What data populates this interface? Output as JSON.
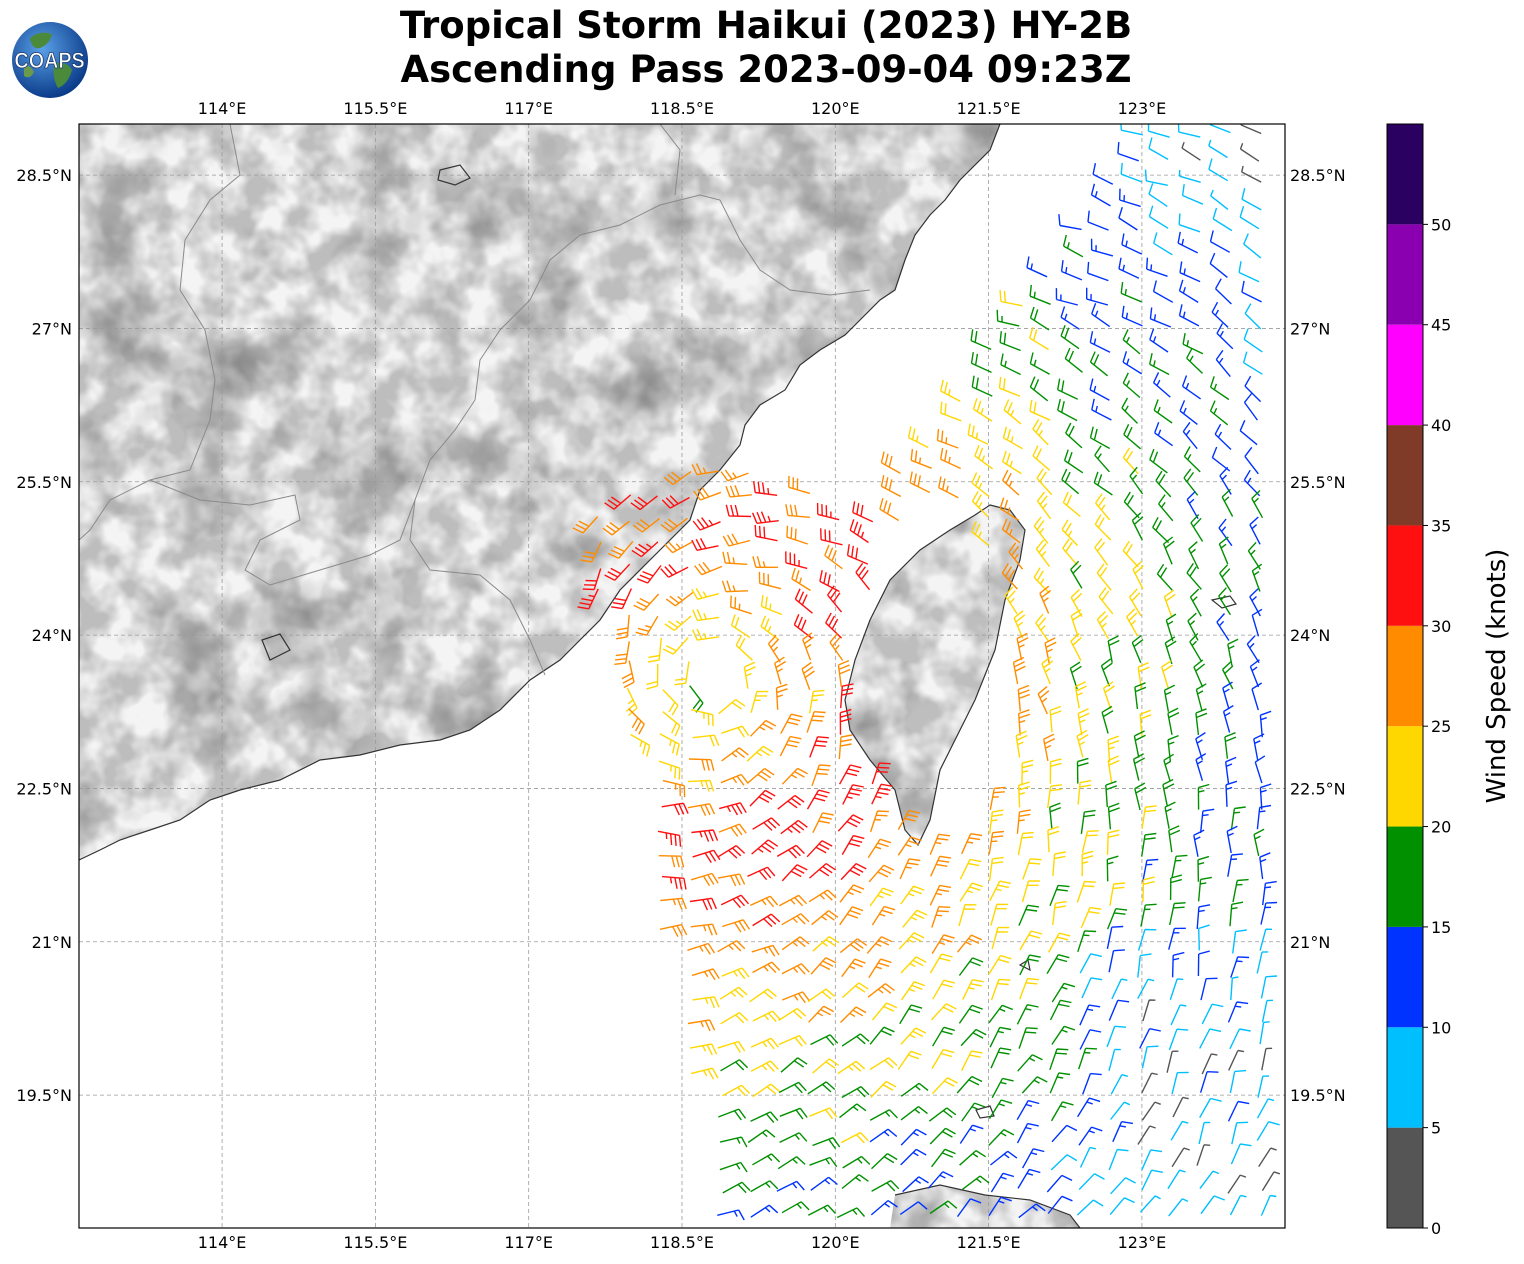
{
  "title": {
    "line1": "Tropical Storm Haikui (2023) HY-2B",
    "line2": "Ascending Pass 2023-09-04 09:23Z"
  },
  "logo": {
    "text": "COAPS",
    "icon": "globe-icon"
  },
  "map": {
    "lon_range": [
      112.6,
      124.4
    ],
    "lat_range": [
      18.2,
      29.0
    ],
    "lon_ticks": [
      "114°E",
      "115.5°E",
      "117°E",
      "118.5°E",
      "120°E",
      "121.5°E",
      "123°E"
    ],
    "lon_tick_values": [
      114,
      115.5,
      117,
      118.5,
      120,
      121.5,
      123
    ],
    "lat_ticks": [
      "28.5°N",
      "27°N",
      "25.5°N",
      "24°N",
      "22.5°N",
      "21°N",
      "19.5°N"
    ],
    "lat_tick_values": [
      28.5,
      27,
      25.5,
      24,
      22.5,
      21,
      19.5
    ],
    "storm_center": {
      "lon": 118.8,
      "lat": 23.6
    }
  },
  "colorbar": {
    "label": "Wind Speed (knots)",
    "tick_labels": [
      "0",
      "5",
      "10",
      "15",
      "20",
      "25",
      "30",
      "35",
      "40",
      "45",
      "50"
    ],
    "bins": [
      {
        "min": 0,
        "max": 5,
        "color": "#555555"
      },
      {
        "min": 5,
        "max": 10,
        "color": "#00bfff"
      },
      {
        "min": 10,
        "max": 15,
        "color": "#0033ff"
      },
      {
        "min": 15,
        "max": 20,
        "color": "#009000"
      },
      {
        "min": 20,
        "max": 25,
        "color": "#ffd700"
      },
      {
        "min": 25,
        "max": 30,
        "color": "#ff8c00"
      },
      {
        "min": 30,
        "max": 35,
        "color": "#ff1010"
      },
      {
        "min": 35,
        "max": 40,
        "color": "#803a28"
      },
      {
        "min": 40,
        "max": 45,
        "color": "#ff00ff"
      },
      {
        "min": 45,
        "max": 50,
        "color": "#8a00b0"
      },
      {
        "min": 50,
        "max": 55,
        "color": "#2a0060"
      }
    ]
  }
}
